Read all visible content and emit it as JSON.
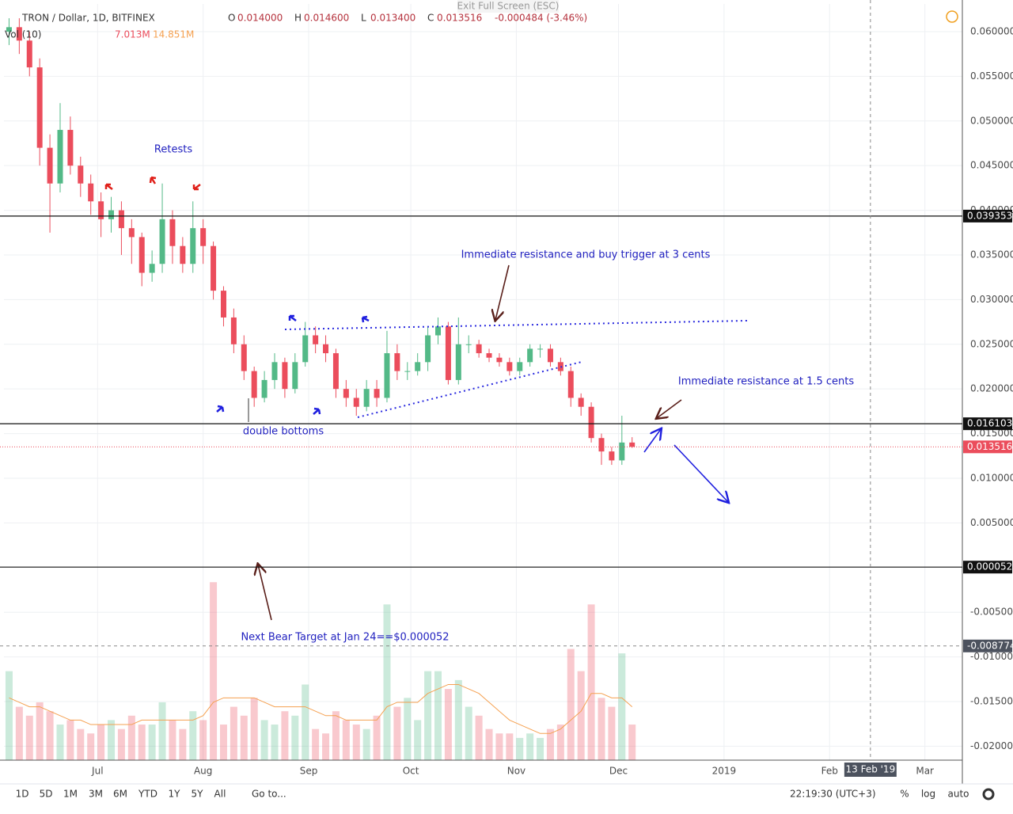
{
  "ui": {
    "exit_hint": "Exit Full Screen (ESC)",
    "symbol": "TRON / Dollar, 1D, BITFINEX",
    "ohlc": [
      [
        "O",
        "0.014000"
      ],
      [
        "H",
        "0.014600"
      ],
      [
        "L",
        "0.013400"
      ],
      [
        "C",
        "0.013516"
      ]
    ],
    "change": "-0.000484 (-3.46%)",
    "volume_label": "Vol (10)",
    "volume_values": [
      "7.013M",
      "14.851M"
    ],
    "ranges": [
      "1D",
      "5D",
      "1M",
      "3M",
      "6M",
      "YTD",
      "1Y",
      "5Y",
      "All"
    ],
    "goto": "Go to...",
    "clock": "22:19:30 (UTC+3)",
    "toggles": [
      "%",
      "log",
      "auto"
    ]
  },
  "chart_data": {
    "type": "candlestick",
    "up_color": "#53b987",
    "down_color": "#eb4d5c",
    "ma_color": "#f5a151",
    "xlim": [
      -0.5,
      281
    ],
    "xticks": [
      {
        "value": 27,
        "label": "Jul"
      },
      {
        "value": 58,
        "label": "Aug"
      },
      {
        "value": 89,
        "label": "Sep"
      },
      {
        "value": 119,
        "label": "Oct"
      },
      {
        "value": 150,
        "label": "Nov"
      },
      {
        "value": 180,
        "label": "Dec"
      },
      {
        "value": 211,
        "label": "2019"
      },
      {
        "value": 242,
        "label": "Feb"
      },
      {
        "value": 270,
        "label": "Mar"
      }
    ],
    "ylim": [
      -0.02156,
      0.0631
    ],
    "yticks": [
      {
        "value": 0.06,
        "label": "0.060000"
      },
      {
        "value": 0.055,
        "label": "0.055000"
      },
      {
        "value": 0.05,
        "label": "0.050000"
      },
      {
        "value": 0.045,
        "label": "0.045000"
      },
      {
        "value": 0.04,
        "label": "0.040000"
      },
      {
        "value": 0.035,
        "label": "0.035000"
      },
      {
        "value": 0.03,
        "label": "0.030000"
      },
      {
        "value": 0.025,
        "label": "0.025000"
      },
      {
        "value": 0.02,
        "label": "0.020000"
      },
      {
        "value": 0.015,
        "label": "0.015000"
      },
      {
        "value": 0.01,
        "label": "0.010000"
      },
      {
        "value": 0.005,
        "label": "0.005000"
      },
      {
        "value": -0.005,
        "label": "-0.005000"
      },
      {
        "value": -0.01,
        "label": "-0.010000"
      },
      {
        "value": -0.015,
        "label": "-0.015000"
      },
      {
        "value": -0.02,
        "label": "-0.020000"
      }
    ],
    "x": [
      1,
      4,
      7,
      10,
      13,
      16,
      19,
      22,
      25,
      28,
      31,
      34,
      37,
      40,
      43,
      46,
      49,
      52,
      55,
      58,
      61,
      64,
      67,
      70,
      73,
      76,
      79,
      82,
      85,
      88,
      91,
      94,
      97,
      100,
      103,
      106,
      109,
      112,
      115,
      118,
      121,
      124,
      127,
      130,
      133,
      136,
      139,
      142,
      145,
      148,
      151,
      154,
      157,
      160,
      163,
      166,
      169,
      172,
      175,
      178,
      181,
      184
    ],
    "open": [
      0.06,
      0.0605,
      0.059,
      0.056,
      0.047,
      0.043,
      0.049,
      0.045,
      0.043,
      0.041,
      0.039,
      0.04,
      0.038,
      0.037,
      0.033,
      0.034,
      0.039,
      0.036,
      0.034,
      0.038,
      0.036,
      0.031,
      0.028,
      0.025,
      0.022,
      0.019,
      0.021,
      0.023,
      0.02,
      0.023,
      0.026,
      0.025,
      0.024,
      0.02,
      0.019,
      0.018,
      0.02,
      0.019,
      0.024,
      0.022,
      0.022,
      0.023,
      0.026,
      0.027,
      0.021,
      0.025,
      0.025,
      0.024,
      0.0235,
      0.023,
      0.022,
      0.023,
      0.0245,
      0.0245,
      0.023,
      0.022,
      0.019,
      0.018,
      0.0145,
      0.013,
      0.012,
      0.014
    ],
    "high": [
      0.0615,
      0.0615,
      0.06,
      0.057,
      0.0485,
      0.052,
      0.0505,
      0.046,
      0.044,
      0.042,
      0.0415,
      0.041,
      0.039,
      0.0375,
      0.0355,
      0.043,
      0.04,
      0.037,
      0.041,
      0.039,
      0.0365,
      0.0315,
      0.029,
      0.026,
      0.0225,
      0.022,
      0.024,
      0.0235,
      0.024,
      0.0275,
      0.027,
      0.026,
      0.0245,
      0.021,
      0.02,
      0.021,
      0.021,
      0.0265,
      0.025,
      0.023,
      0.024,
      0.027,
      0.028,
      0.0275,
      0.028,
      0.026,
      0.0255,
      0.0245,
      0.024,
      0.0235,
      0.0235,
      0.025,
      0.025,
      0.025,
      0.0235,
      0.0225,
      0.0195,
      0.0185,
      0.015,
      0.0135,
      0.017,
      0.0146
    ],
    "low": [
      0.0585,
      0.0575,
      0.055,
      0.045,
      0.0375,
      0.042,
      0.044,
      0.0415,
      0.0395,
      0.037,
      0.0375,
      0.035,
      0.034,
      0.0315,
      0.032,
      0.033,
      0.034,
      0.033,
      0.033,
      0.034,
      0.03,
      0.027,
      0.024,
      0.021,
      0.018,
      0.0185,
      0.02,
      0.019,
      0.0195,
      0.0225,
      0.024,
      0.023,
      0.019,
      0.018,
      0.017,
      0.0175,
      0.018,
      0.0185,
      0.021,
      0.021,
      0.0215,
      0.022,
      0.025,
      0.0205,
      0.0205,
      0.024,
      0.0235,
      0.023,
      0.0225,
      0.0215,
      0.0215,
      0.0225,
      0.0235,
      0.0225,
      0.0215,
      0.018,
      0.017,
      0.014,
      0.0115,
      0.0115,
      0.0115,
      0.0134
    ],
    "close": [
      0.0605,
      0.059,
      0.056,
      0.047,
      0.043,
      0.049,
      0.045,
      0.043,
      0.041,
      0.039,
      0.04,
      0.038,
      0.037,
      0.033,
      0.034,
      0.039,
      0.036,
      0.034,
      0.038,
      0.036,
      0.031,
      0.028,
      0.025,
      0.022,
      0.019,
      0.021,
      0.023,
      0.02,
      0.023,
      0.026,
      0.025,
      0.024,
      0.02,
      0.019,
      0.018,
      0.02,
      0.019,
      0.024,
      0.022,
      0.022,
      0.023,
      0.026,
      0.027,
      0.021,
      0.025,
      0.025,
      0.024,
      0.0235,
      0.023,
      0.022,
      0.023,
      0.0245,
      0.0245,
      0.023,
      0.022,
      0.019,
      0.018,
      0.0145,
      0.013,
      0.012,
      0.014,
      0.013516
    ],
    "vlim": [
      0,
      42
    ],
    "volume": [
      20,
      12,
      10,
      13,
      11,
      8,
      9,
      7,
      6,
      8,
      9,
      7,
      10,
      8,
      8,
      13,
      9,
      7,
      11,
      9,
      40,
      8,
      12,
      10,
      14,
      9,
      8,
      11,
      10,
      17,
      7,
      6,
      11,
      9,
      8,
      7,
      10,
      35,
      12,
      14,
      9,
      20,
      20,
      16,
      18,
      12,
      10,
      7,
      6,
      6,
      5,
      6,
      5,
      7,
      8,
      25,
      20,
      35,
      14,
      12,
      24,
      8
    ],
    "volume_ma": [
      14,
      13,
      12,
      12,
      11,
      10,
      9,
      9,
      8,
      8,
      8,
      8,
      8,
      9,
      9,
      9,
      9,
      9,
      9,
      10,
      13,
      14,
      14,
      14,
      14,
      13,
      12,
      12,
      12,
      12,
      11,
      10,
      10,
      9,
      9,
      9,
      9,
      12,
      13,
      13,
      13,
      15,
      16,
      17,
      17,
      16,
      15,
      13,
      11,
      9,
      8,
      7,
      6,
      6,
      7,
      9,
      11,
      15,
      15,
      14,
      14,
      12
    ],
    "price_lines": [
      {
        "value": 0.039353,
        "label": "0.039353"
      },
      {
        "value": 0.016103,
        "label": "0.016103"
      },
      {
        "value": 5.2e-05,
        "label": "0.000052"
      }
    ],
    "last_price": {
      "value": 0.013516,
      "label": "0.013516"
    },
    "crosshair_y": {
      "value": -0.008774,
      "label": "-0.008774"
    },
    "crosshair_x": {
      "value": 254,
      "label": "13 Feb '19"
    },
    "annotations": [
      "Retests",
      "Immediate resistance and buy trigger at 3 cents",
      "Immediate resistance at 1.5 cents",
      "double bottoms",
      "Next Bear Target at Jan 24==$0.000052"
    ]
  }
}
